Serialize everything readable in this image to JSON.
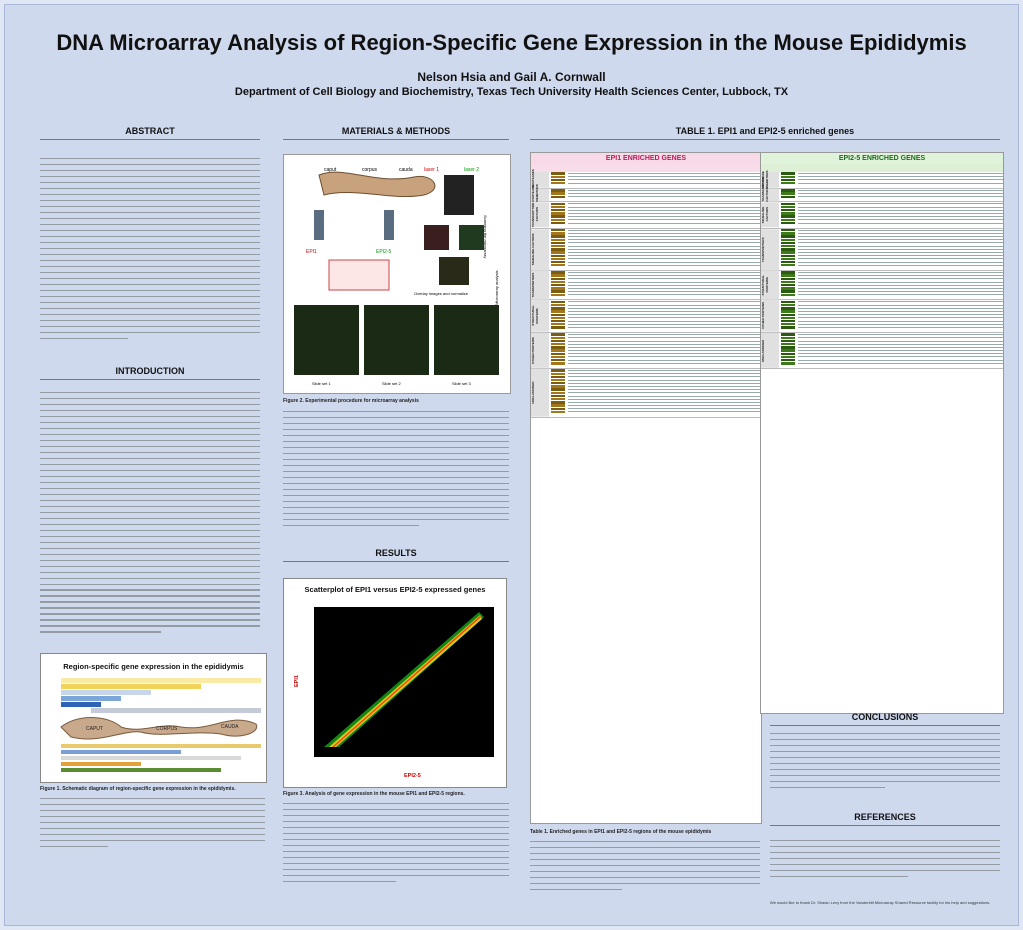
{
  "header": {
    "title": "DNA Microarray Analysis of Region-Specific Gene Expression in the Mouse Epididymis",
    "authors": "Nelson Hsia and Gail A. Cornwall",
    "affiliation": "Department of Cell Biology and Biochemistry, Texas Tech University Health Sciences Center, Lubbock, TX"
  },
  "sections": {
    "abstract": "ABSTRACT",
    "introduction": "INTRODUCTION",
    "methods": "MATERIALS & METHODS",
    "results": "RESULTS",
    "table1": "TABLE 1. EPI1 and EPI2-5 enriched genes",
    "conclusions": "CONCLUSIONS",
    "references": "REFERENCES"
  },
  "figure1": {
    "title": "Region-specific gene expression in the epididymis",
    "regions": [
      "CAPUT",
      "CORPUS",
      "CAUDA"
    ],
    "caption": "Figure 1. Schematic diagram of region-specific gene expression in the epididymis."
  },
  "figure2": {
    "labels": [
      "caput",
      "corpus",
      "cauda",
      "EPI1",
      "EPI2-5",
      "laser 1",
      "laser 2",
      "Overlay images and normalize",
      "Scanning the microarray",
      "Microarray analysis"
    ],
    "slides": [
      "Slide set 1",
      "Slide set 2",
      "Slide set 3"
    ],
    "caption": "Figure 2.  Experimental procedure for microarray analysis"
  },
  "figure3": {
    "title": "Scatterplot of EPI1 versus EPI2-5 expressed genes",
    "xlabel": "EPI2-5",
    "ylabel": "EPI1",
    "caption": "Figure 3. Analysis of gene expression in the mouse EPI1 and EPI2-5 regions."
  },
  "table1": {
    "left_title": "EPI1 ENRICHED GENES",
    "right_title": "EPI2-5 ENRICHED GENES",
    "caption": "Table 1. Enriched genes in EPI1 and EPI2-5 regions of the mouse epididymis",
    "left_groups": [
      "PROTEASES",
      "PROTEASE INHIBITORS",
      "TRANSCRIPTION FACTORS",
      "SIGNALING FACTORS",
      "TRANSPORTERS",
      "STRUCTURAL PROTEINS",
      "OTHER PROTEINS",
      "UNCLASSIFIED"
    ],
    "right_groups": [
      "PROTEASE INHIBITORS",
      "TRANSCRIPTION FACTORS",
      "SIGNALING FACTORS",
      "TRANSPORTERS",
      "STRUCTURAL PROTEINS",
      "OTHER PROTEINS",
      "UNCLASSIFIED"
    ]
  },
  "references_note": "We would like to thank Dr. Shawn Levy from the Vanderbilt Microarray Shared Resource facility for his help and suggestions."
}
